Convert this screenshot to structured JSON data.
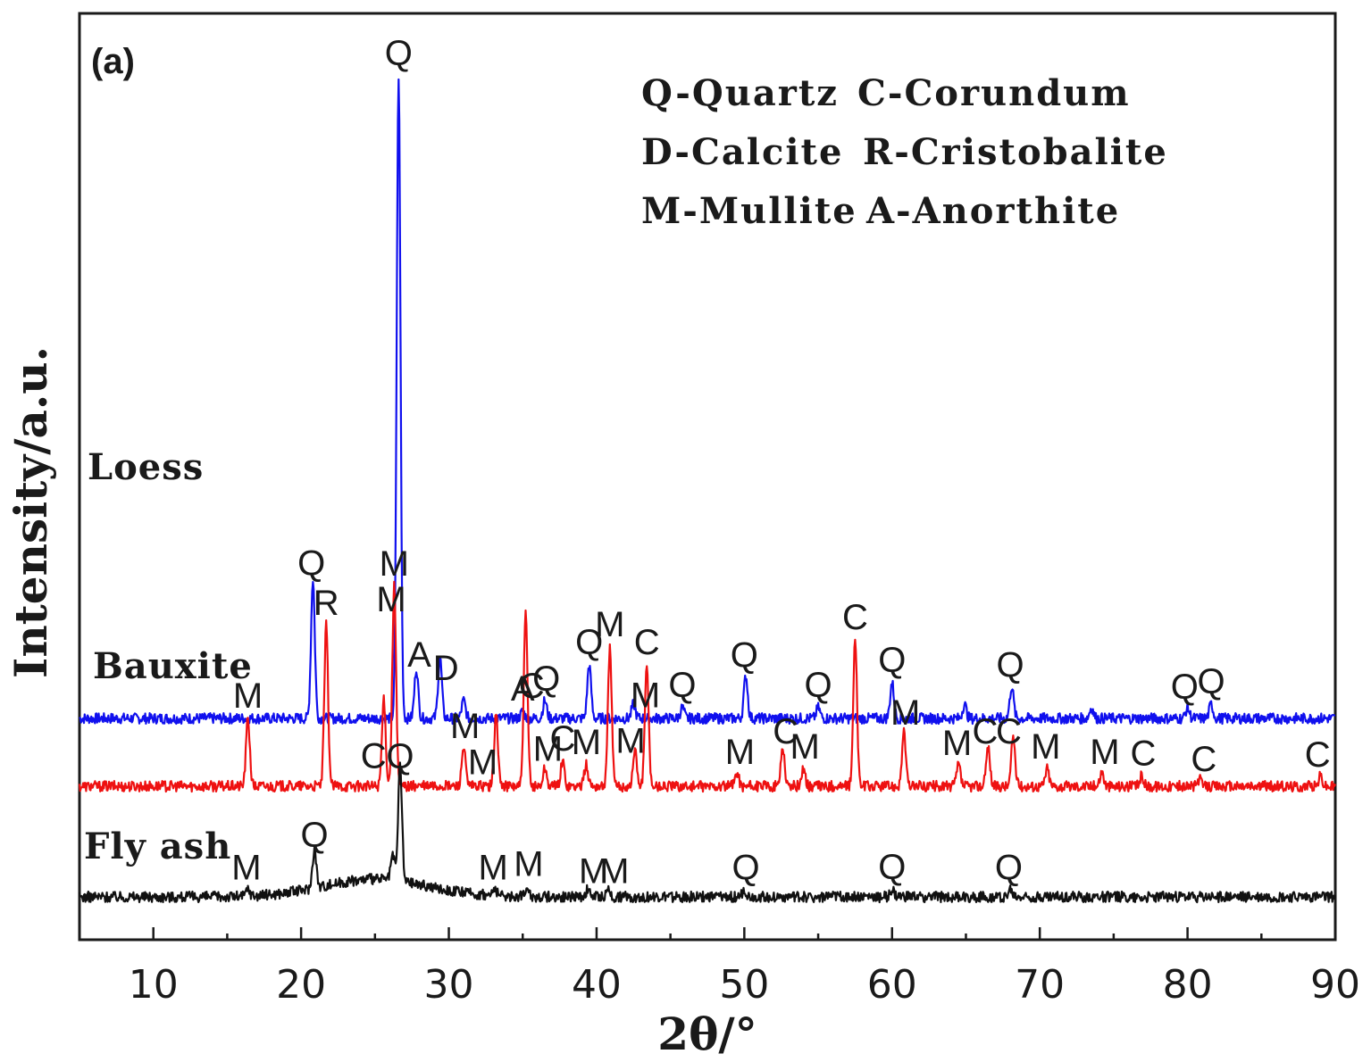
{
  "chart_data": {
    "type": "line",
    "panel_label": "(a)",
    "xlabel": "2θ/°",
    "ylabel": "Intensity/a.u.",
    "xlim": [
      5,
      90
    ],
    "xticks": [
      10,
      20,
      30,
      40,
      50,
      60,
      70,
      80,
      90
    ],
    "y_ticks_shown": false,
    "grid": false,
    "legend": {
      "placement": "top-right",
      "rows": [
        [
          "Q-Quartz",
          "C-Corundum"
        ],
        [
          "D-Calcite",
          "R-Cristobalite"
        ],
        [
          "M-Mullite",
          "A-Anorthite"
        ]
      ]
    },
    "series": [
      {
        "name": "Loess",
        "color": "#1010ee",
        "baseline": 100,
        "peaks": [
          [
            20.8,
            78
          ],
          [
            26.6,
            360
          ],
          [
            27.8,
            28
          ],
          [
            29.4,
            34
          ],
          [
            31.0,
            10
          ],
          [
            35.0,
            4
          ],
          [
            36.5,
            10
          ],
          [
            39.5,
            30
          ],
          [
            42.5,
            8
          ],
          [
            45.8,
            6
          ],
          [
            50.1,
            24
          ],
          [
            55.0,
            6
          ],
          [
            60.0,
            20
          ],
          [
            64.9,
            8
          ],
          [
            68.1,
            18
          ],
          [
            73.5,
            6
          ],
          [
            80.0,
            6
          ],
          [
            81.6,
            8
          ]
        ],
        "annotations": [
          {
            "x": 20.7,
            "label": "Q"
          },
          {
            "x": 26.6,
            "label": "Q"
          },
          {
            "x": 28.0,
            "label": "A"
          },
          {
            "x": 29.8,
            "label": "D"
          },
          {
            "x": 35.0,
            "label": "A"
          },
          {
            "x": 36.6,
            "label": "Q"
          },
          {
            "x": 39.5,
            "label": "Q"
          },
          {
            "x": 43.3,
            "label": "M"
          },
          {
            "x": 45.8,
            "label": "Q"
          },
          {
            "x": 50.0,
            "label": "Q"
          },
          {
            "x": 55.0,
            "label": "Q"
          },
          {
            "x": 60.0,
            "label": "Q"
          },
          {
            "x": 68.0,
            "label": "Q"
          },
          {
            "x": 79.8,
            "label": "Q"
          },
          {
            "x": 81.6,
            "label": "Q"
          }
        ]
      },
      {
        "name": "Bauxite",
        "color": "#ee1111",
        "baseline": 62,
        "peaks": [
          [
            16.4,
            38
          ],
          [
            21.7,
            90
          ],
          [
            25.6,
            48
          ],
          [
            26.3,
            112
          ],
          [
            31.0,
            22
          ],
          [
            33.2,
            40
          ],
          [
            35.2,
            96
          ],
          [
            36.5,
            10
          ],
          [
            37.7,
            14
          ],
          [
            39.3,
            12
          ],
          [
            40.9,
            78
          ],
          [
            42.6,
            20
          ],
          [
            43.4,
            68
          ],
          [
            49.5,
            8
          ],
          [
            52.6,
            22
          ],
          [
            54.0,
            10
          ],
          [
            57.5,
            82
          ],
          [
            60.8,
            30
          ],
          [
            64.5,
            12
          ],
          [
            66.5,
            22
          ],
          [
            68.2,
            28
          ],
          [
            70.5,
            10
          ],
          [
            74.2,
            8
          ],
          [
            76.9,
            6
          ],
          [
            80.8,
            4
          ],
          [
            89.0,
            6
          ]
        ],
        "annotations": [
          {
            "x": 16.4,
            "label": "M"
          },
          {
            "x": 21.7,
            "label": "R"
          },
          {
            "x": 24.9,
            "label": "C"
          },
          {
            "x": 26.1,
            "label": "M"
          },
          {
            "x": 26.3,
            "label": "M"
          },
          {
            "x": 31.1,
            "label": "M"
          },
          {
            "x": 32.3,
            "label": "M"
          },
          {
            "x": 35.6,
            "label": "C"
          },
          {
            "x": 36.7,
            "label": "M"
          },
          {
            "x": 37.7,
            "label": "C"
          },
          {
            "x": 39.3,
            "label": "M"
          },
          {
            "x": 40.9,
            "label": "M"
          },
          {
            "x": 42.3,
            "label": "M"
          },
          {
            "x": 43.4,
            "label": "C"
          },
          {
            "x": 49.7,
            "label": "M"
          },
          {
            "x": 52.8,
            "label": "C"
          },
          {
            "x": 54.1,
            "label": "M"
          },
          {
            "x": 57.5,
            "label": "C"
          },
          {
            "x": 60.9,
            "label": "M"
          },
          {
            "x": 64.4,
            "label": "M"
          },
          {
            "x": 66.3,
            "label": "C"
          },
          {
            "x": 67.9,
            "label": "C"
          },
          {
            "x": 70.4,
            "label": "M"
          },
          {
            "x": 74.4,
            "label": "M"
          },
          {
            "x": 77.0,
            "label": "C"
          },
          {
            "x": 81.1,
            "label": "C"
          },
          {
            "x": 88.8,
            "label": "C"
          }
        ]
      },
      {
        "name": "Fly ash",
        "color": "#111111",
        "baseline": 0,
        "peaks": [
          [
            16.4,
            4
          ],
          [
            20.9,
            22
          ],
          [
            26.2,
            14
          ],
          [
            26.7,
            66
          ],
          [
            33.1,
            4
          ],
          [
            35.3,
            6
          ],
          [
            39.4,
            4
          ],
          [
            40.8,
            4
          ],
          [
            50.0,
            4
          ],
          [
            60.0,
            4
          ],
          [
            68.0,
            4
          ]
        ],
        "annotations": [
          {
            "x": 16.3,
            "label": "M"
          },
          {
            "x": 20.9,
            "label": "Q"
          },
          {
            "x": 26.7,
            "label": "Q"
          },
          {
            "x": 33.0,
            "label": "M"
          },
          {
            "x": 35.4,
            "label": "M"
          },
          {
            "x": 39.8,
            "label": "M"
          },
          {
            "x": 41.2,
            "label": "M"
          },
          {
            "x": 50.1,
            "label": "Q"
          },
          {
            "x": 60.0,
            "label": "Q"
          },
          {
            "x": 67.9,
            "label": "Q"
          }
        ]
      }
    ]
  }
}
